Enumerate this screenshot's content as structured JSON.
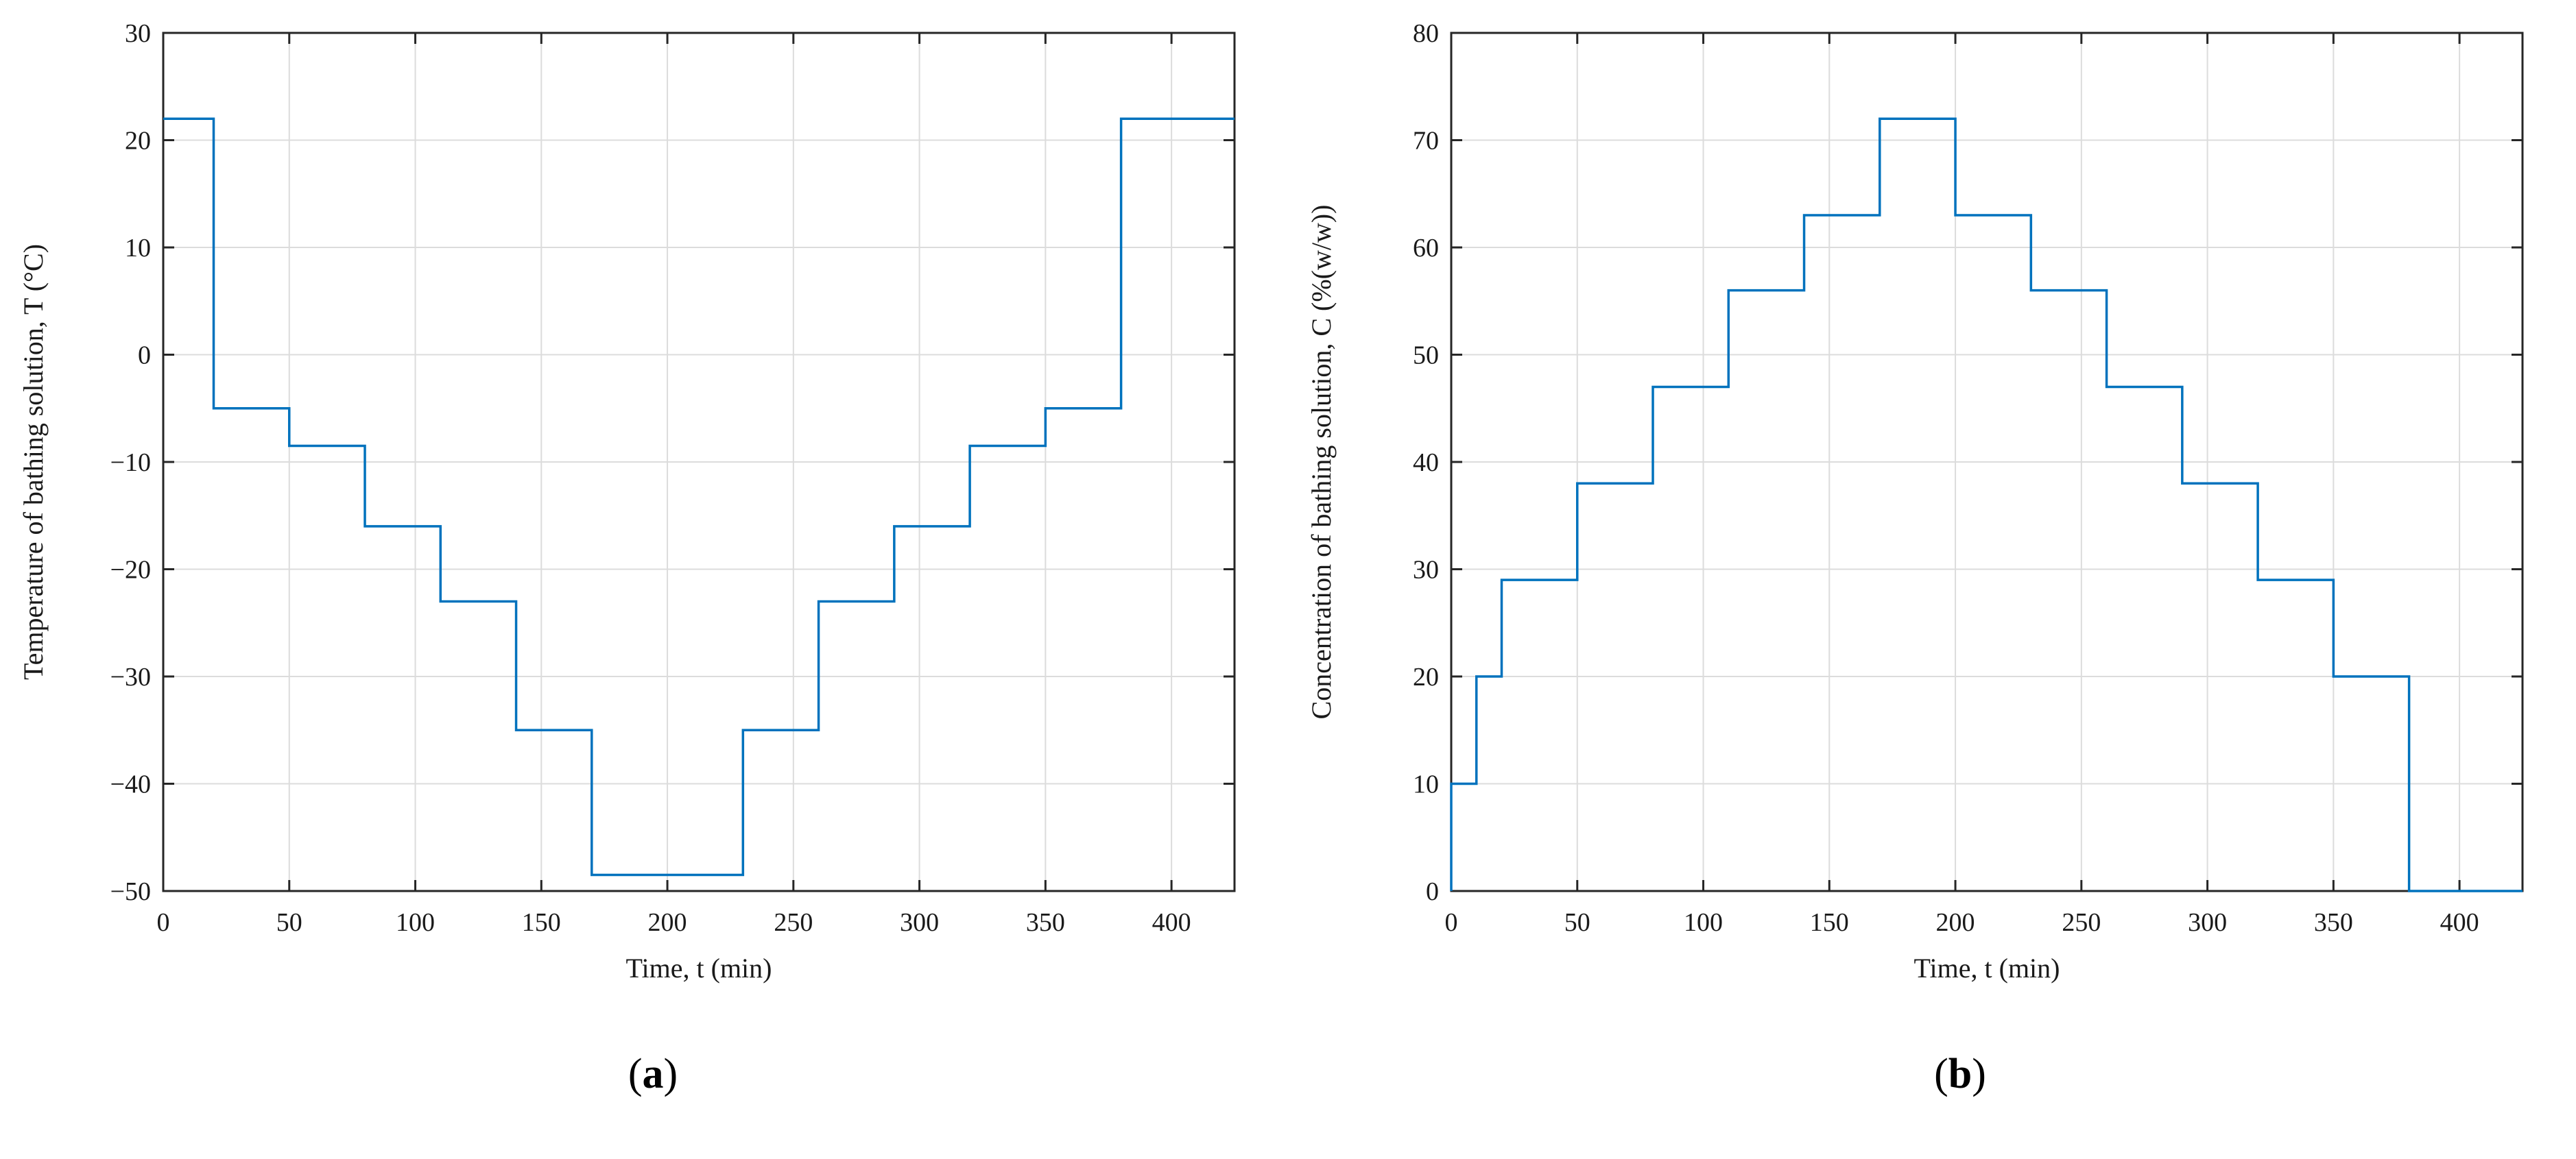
{
  "figure": {
    "background": "#ffffff",
    "captions": {
      "a": {
        "prefix": "(",
        "letter": "a",
        "suffix": ")"
      },
      "b": {
        "prefix": "(",
        "letter": "b",
        "suffix": ")"
      }
    }
  },
  "colors": {
    "line": "#0072BD",
    "axis": "#262626",
    "grid": "#dcdcdc",
    "text": "#1a1a1a"
  },
  "chart_data": [
    {
      "type": "line",
      "subtype": "step",
      "panel": "a",
      "title": "",
      "xlabel": "Time, t (min)",
      "ylabel": "Temperature of bathing solution, T (°C)",
      "xlim": [
        0,
        425
      ],
      "ylim": [
        -50,
        30
      ],
      "grid": true,
      "legend": "none",
      "x_tick_values": [
        0,
        50,
        100,
        150,
        200,
        250,
        300,
        350,
        400
      ],
      "x_tick_labels": [
        "0",
        "50",
        "100",
        "150",
        "200",
        "250",
        "300",
        "350",
        "400"
      ],
      "y_tick_values": [
        -50,
        -40,
        -30,
        -20,
        -10,
        0,
        10,
        20,
        30
      ],
      "y_tick_labels": [
        "−50",
        "−40",
        "−30",
        "−20",
        "−10",
        "0",
        "10",
        "20",
        "30"
      ],
      "segments": {
        "t": [
          0,
          20,
          50,
          80,
          110,
          140,
          170,
          230,
          260,
          290,
          320,
          350,
          380
        ],
        "v": [
          22,
          -5,
          -8.5,
          -16,
          -23,
          -35,
          -48.5,
          -35,
          -23,
          -16,
          -8.5,
          -5,
          22
        ],
        "t_end": 425
      }
    },
    {
      "type": "line",
      "subtype": "step",
      "panel": "b",
      "title": "",
      "xlabel": "Time, t (min)",
      "ylabel": "Concentration of bathing solution, C (%(w/w))",
      "xlim": [
        0,
        425
      ],
      "ylim": [
        0,
        80
      ],
      "grid": true,
      "legend": "none",
      "x_tick_values": [
        0,
        50,
        100,
        150,
        200,
        250,
        300,
        350,
        400
      ],
      "x_tick_labels": [
        "0",
        "50",
        "100",
        "150",
        "200",
        "250",
        "300",
        "350",
        "400"
      ],
      "y_tick_values": [
        0,
        10,
        20,
        30,
        40,
        50,
        60,
        70,
        80
      ],
      "y_tick_labels": [
        "0",
        "10",
        "20",
        "30",
        "40",
        "50",
        "60",
        "70",
        "80"
      ],
      "segments": {
        "t": [
          0,
          0,
          10,
          20,
          50,
          80,
          110,
          140,
          170,
          200,
          230,
          260,
          290,
          320,
          350,
          380
        ],
        "v": [
          0,
          10,
          20,
          29,
          38,
          47,
          56,
          63,
          72,
          63,
          56,
          47,
          38,
          29,
          20,
          0
        ],
        "t_end": 425
      }
    }
  ]
}
